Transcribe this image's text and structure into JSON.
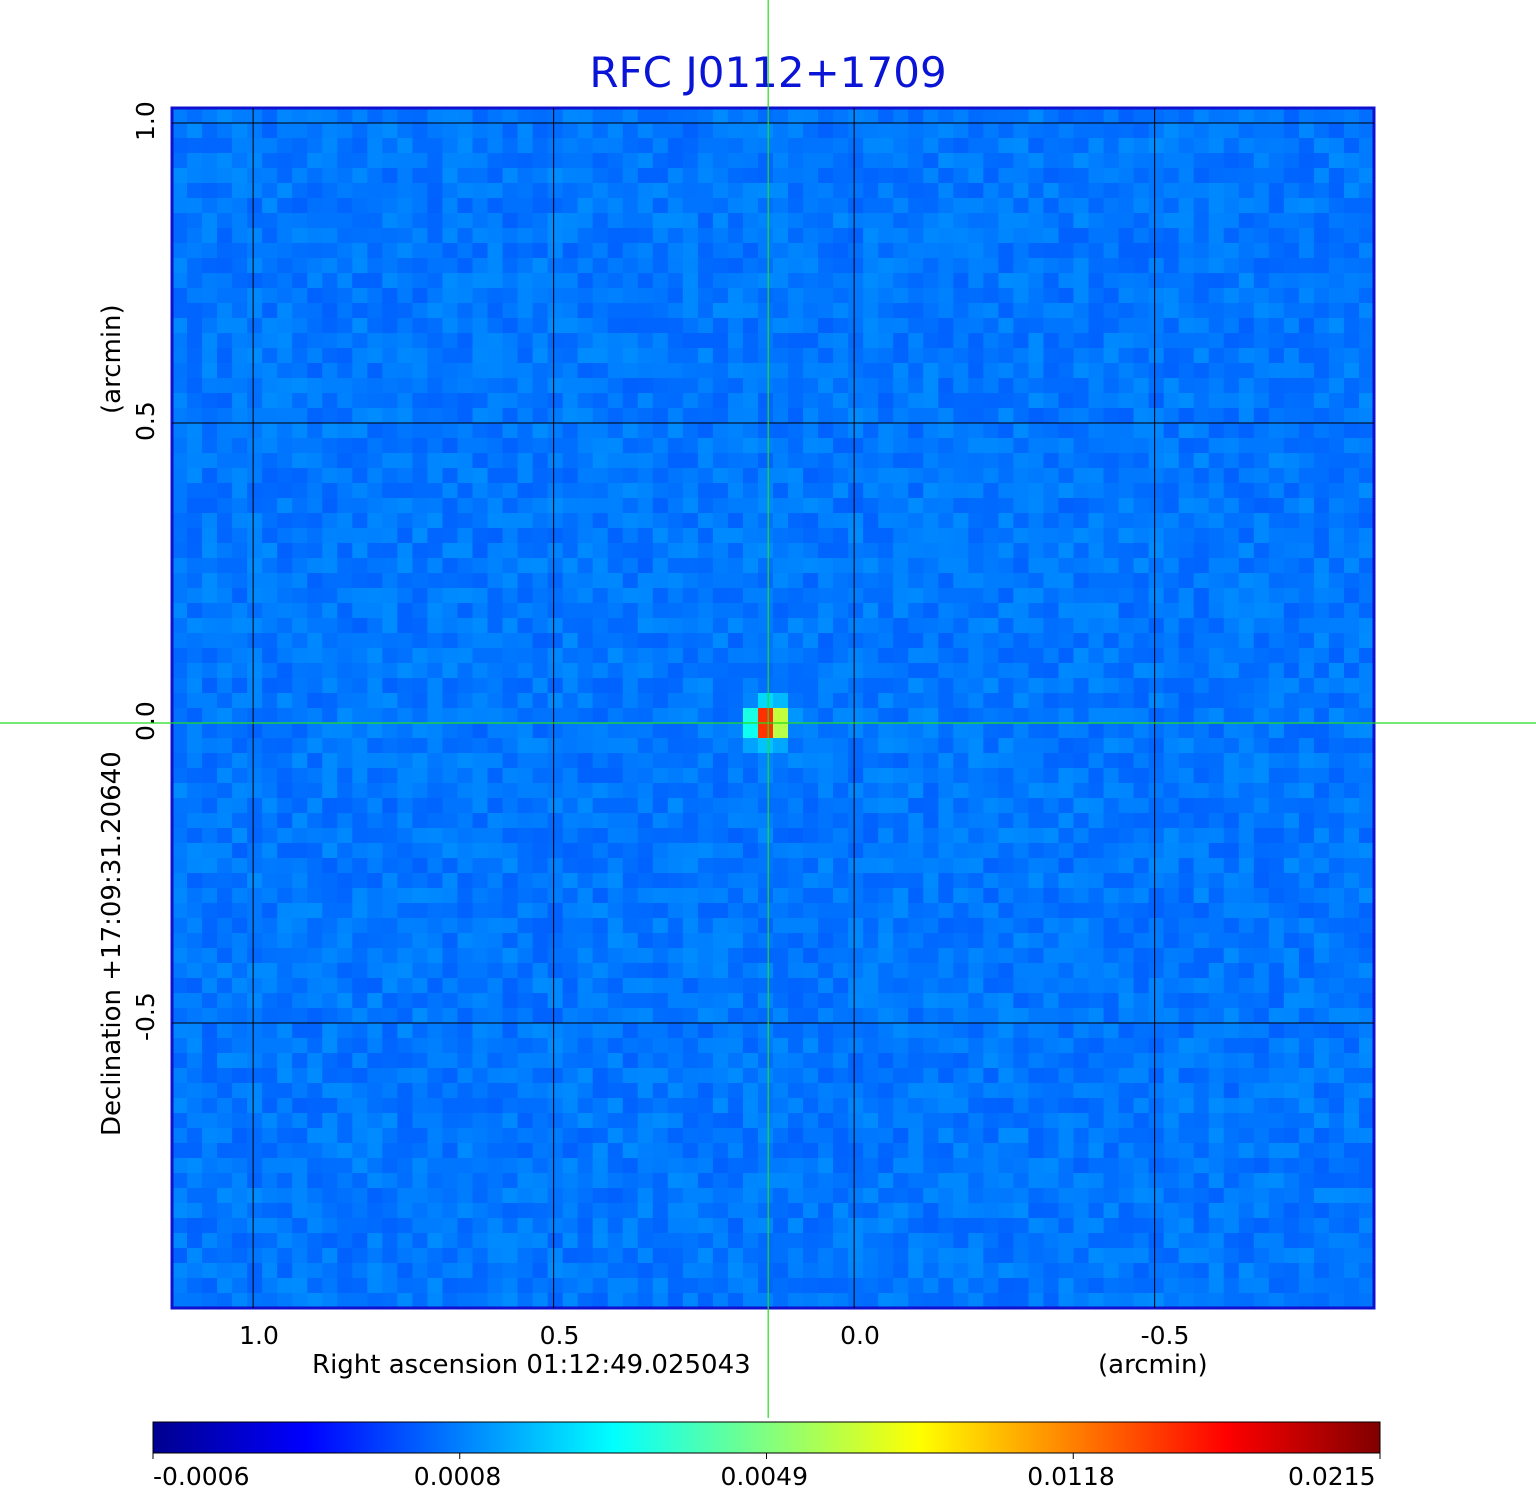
{
  "chart_data": {
    "type": "heatmap",
    "title": "RFC J0112+1709",
    "xlabel": "Right ascension  01:12:49.025043",
    "xunit": "(arcmin)",
    "ylabel": "Declination  +17:09:31.20640",
    "yunit": "(arcmin)",
    "x_ticks": [
      "1.0",
      "0.5",
      "0.0",
      "-0.5"
    ],
    "x_tick_values": [
      1.0,
      0.5,
      0.0,
      -0.5
    ],
    "y_ticks": [
      "1.0",
      "0.5",
      "0.0",
      "-0.5"
    ],
    "y_tick_values": [
      1.0,
      0.5,
      0.0,
      -0.5
    ],
    "xlim": [
      1.135,
      -0.865
    ],
    "ylim": [
      -0.975,
      1.025
    ],
    "x_direction": "decreasing",
    "grid": true,
    "colorbar": {
      "colormap": "jet",
      "orientation": "horizontal",
      "tick_labels": [
        "-0.0006",
        "0.0008",
        "0.0049",
        "0.0118",
        "0.0215"
      ],
      "min": -0.0006,
      "max": 0.0215
    },
    "source": {
      "ra_offset_arcmin": 0.143,
      "dec_offset_arcmin": 0.0,
      "peak": 0.0215
    },
    "crosshair": {
      "x_arcmin": 0.143,
      "y_arcmin": 0.0,
      "color": "#22dd22"
    },
    "background_level": 0.0,
    "colors": {
      "title": "#0a14d6",
      "frame": "#1010d0",
      "grid": "#000000",
      "crosshair": "#22dd22"
    }
  }
}
